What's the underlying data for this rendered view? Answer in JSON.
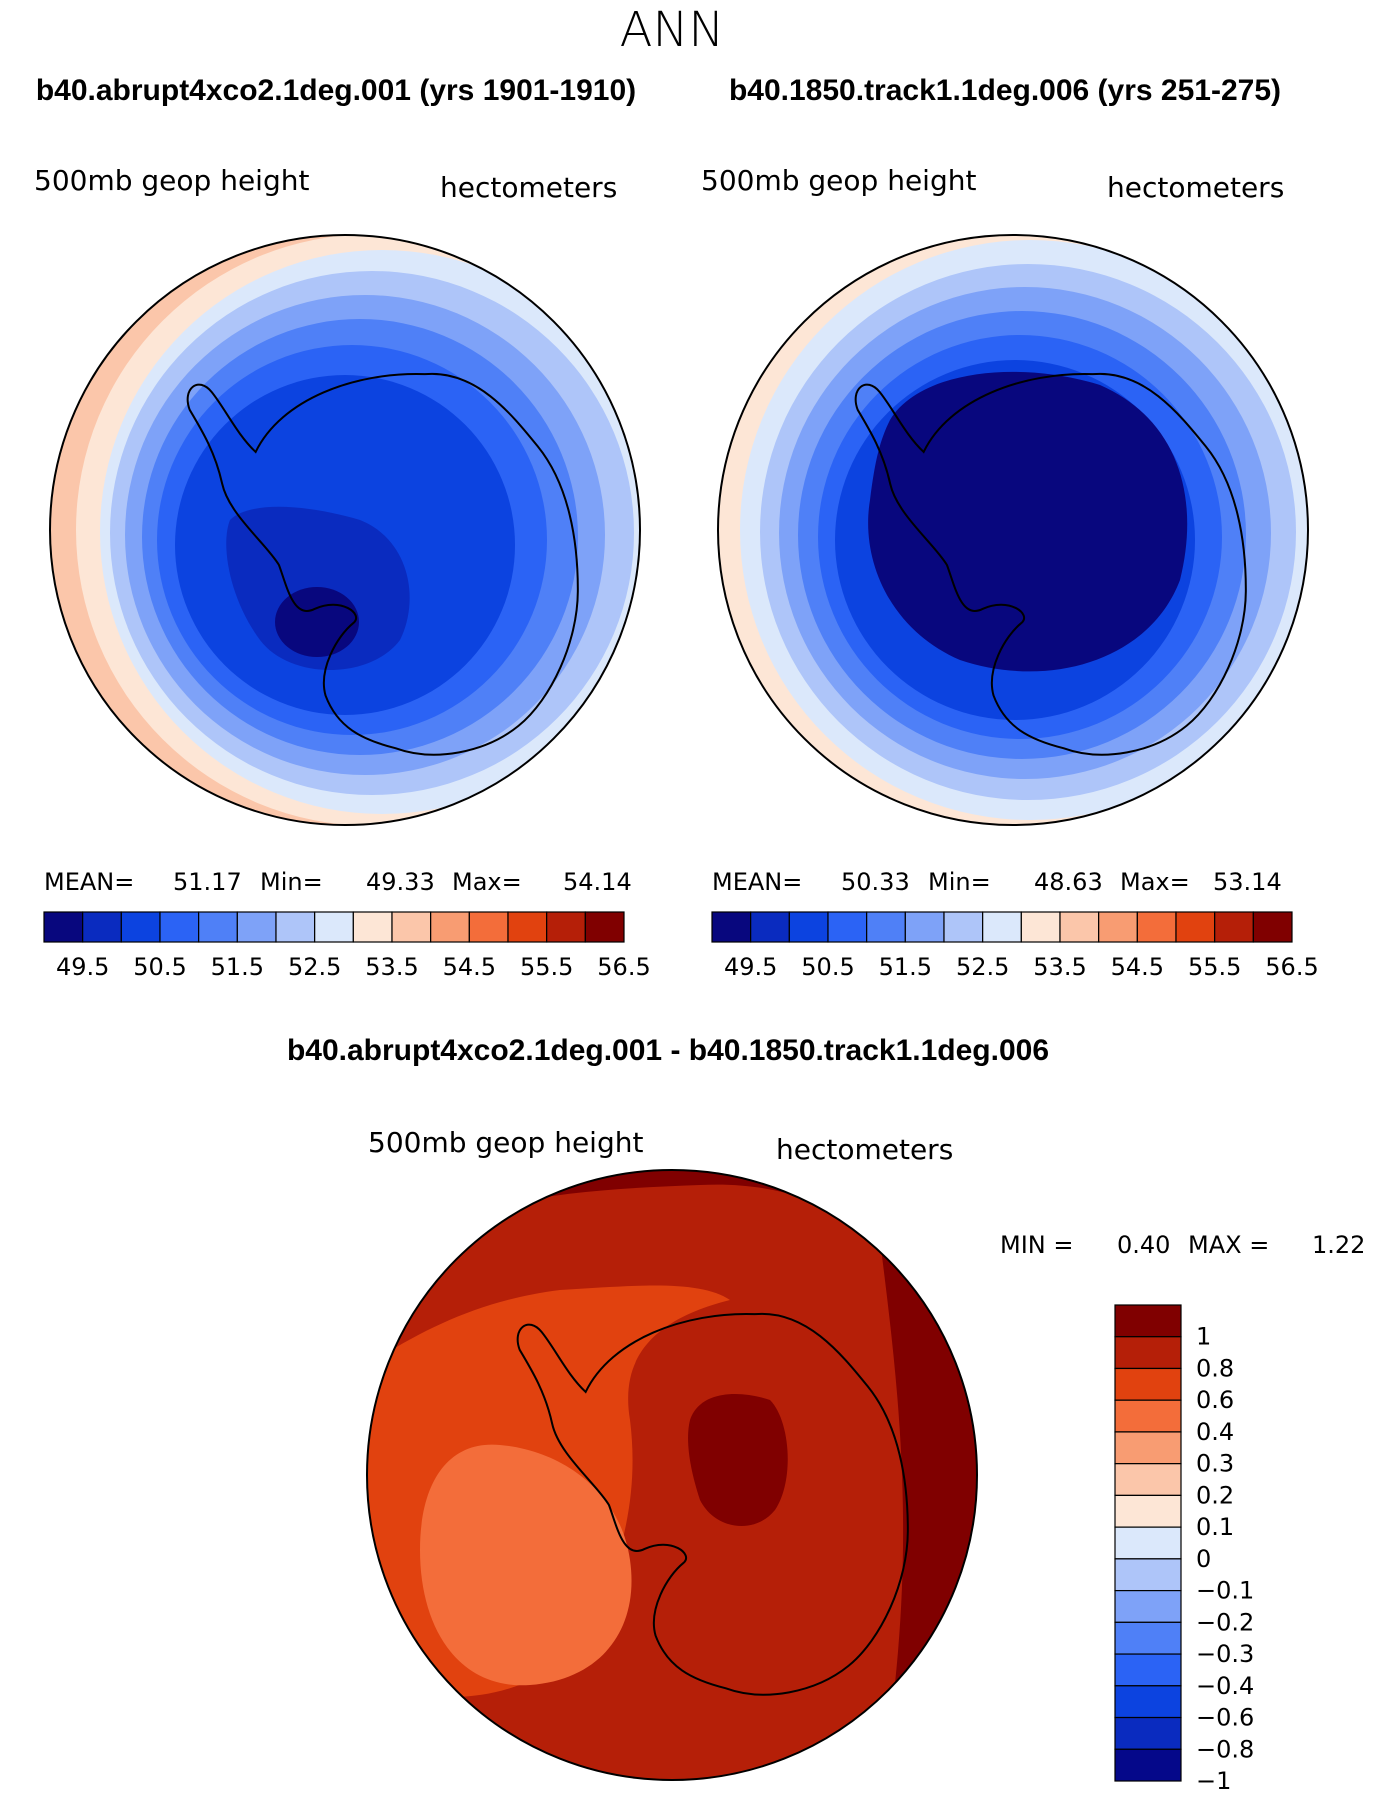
{
  "season": "ANN",
  "colors": {
    "abs_levels": [
      "#08077e",
      "#0a2bbf",
      "#0c43e0",
      "#2b63f5",
      "#4f80f7",
      "#7ea2f8",
      "#aec5f9",
      "#dbe8fb",
      "#fde6d6",
      "#fbc6aa",
      "#f89c72",
      "#f36d3a",
      "#e1420f",
      "#b51f08",
      "#800000"
    ],
    "diff_levels": [
      "#05088a",
      "#0a2bbf",
      "#0c43e0",
      "#2b63f5",
      "#4f80f7",
      "#7ea2f8",
      "#aec5f9",
      "#dbe8fb",
      "#fde6d6",
      "#fbc6aa",
      "#f89c72",
      "#f36d3a",
      "#e1420f",
      "#b51f08",
      "#800000"
    ]
  },
  "panels": [
    {
      "id": "case",
      "title": "b40.abrupt4xco2.1deg.001 (yrs 1901-1910)",
      "variable": "500mb geop height",
      "units": "hectometers",
      "mean_label": "MEAN=",
      "mean": "51.17",
      "min_label": "Min=",
      "min": "49.33",
      "max_label": "Max=",
      "max": "54.14",
      "colorbar_ticks": [
        "49.5",
        "50.5",
        "51.5",
        "52.5",
        "53.5",
        "54.5",
        "55.5",
        "56.5"
      ]
    },
    {
      "id": "control",
      "title": "b40.1850.track1.1deg.006 (yrs 251-275)",
      "variable": "500mb geop height",
      "units": "hectometers",
      "mean_label": "MEAN=",
      "mean": "50.33",
      "min_label": "Min=",
      "min": "48.63",
      "max_label": "Max=",
      "max": "53.14",
      "colorbar_ticks": [
        "49.5",
        "50.5",
        "51.5",
        "52.5",
        "53.5",
        "54.5",
        "55.5",
        "56.5"
      ]
    }
  ],
  "difference": {
    "title": "b40.abrupt4xco2.1deg.001 - b40.1850.track1.1deg.006",
    "variable": "500mb geop height",
    "units": "hectometers",
    "min_label": "MIN =",
    "min": "0.40",
    "max_label": "MAX =",
    "max": "1.22",
    "colorbar_ticks": [
      "1",
      "0.8",
      "0.6",
      "0.4",
      "0.3",
      "0.2",
      "0.1",
      "0",
      "−0.1",
      "−0.2",
      "−0.3",
      "−0.4",
      "−0.6",
      "−0.8",
      "−1"
    ]
  }
}
